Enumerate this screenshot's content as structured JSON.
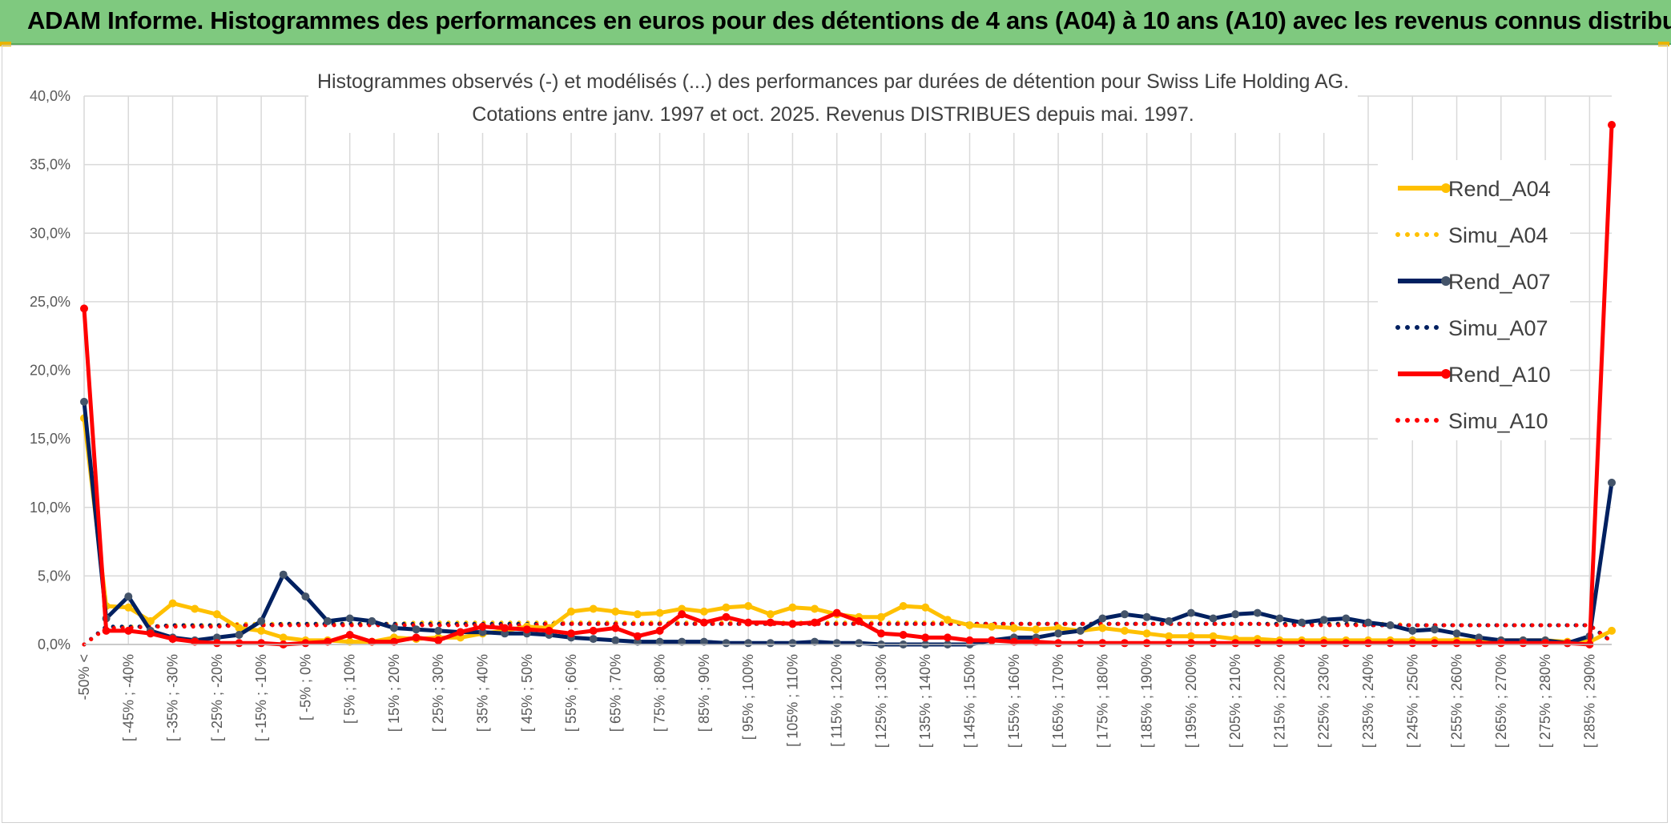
{
  "header": {
    "title": "ADAM Informe. Histogrammes des performances en euros pour des détentions de 4 ans (A04) à 10 ans (A10) avec les revenus connus distribués"
  },
  "chart_data": {
    "type": "line",
    "title": "Histogrammes observés (-) et modélisés (...) des performances par durées de détention pour Swiss Life Holding AG.",
    "subtitle": "Cotations entre janv. 1997 et oct. 2025. Revenus DISTRIBUES depuis mai. 1997.",
    "xlabel": "",
    "ylabel": "",
    "ylim": [
      0,
      40
    ],
    "y_ticks": [
      "0,0%",
      "5,0%",
      "10,0%",
      "15,0%",
      "20,0%",
      "25,0%",
      "30,0%",
      "35,0%",
      "40,0%"
    ],
    "grid": true,
    "legend_position": "right",
    "x_tick_labels": [
      "-50% <",
      "[ -45% ; -40%",
      "[ -35% ; -30%",
      "[ -25% ; -20%",
      "[ -15% ; -10%",
      "[ -5% ; 0%",
      "[ 5% ; 10%",
      "[ 15% ; 20%",
      "[ 25% ; 30%",
      "[ 35% ; 40%",
      "[ 45% ; 50%",
      "[ 55% ; 60%",
      "[ 65% ; 70%",
      "[ 75% ; 80%",
      "[ 85% ; 90%",
      "[ 95% ; 100%",
      "[ 105% ; 110%",
      "[ 115% ; 120%",
      "[ 125% ; 130%",
      "[ 135% ; 140%",
      "[ 145% ; 150%",
      "[ 155% ; 160%",
      "[ 165% ; 170%",
      "[ 175% ; 180%",
      "[ 185% ; 190%",
      "[ 195% ; 200%",
      "[ 205% ; 210%",
      "[ 215% ; 220%",
      "[ 225% ; 230%",
      "[ 235% ; 240%",
      "[ 245% ; 250%",
      "[ 255% ; 260%",
      "[ 265% ; 270%",
      "[ 275% ; 280%",
      "[ 285% ; 290%"
    ],
    "n_points": 70,
    "series": [
      {
        "name": "Rend_A04",
        "style": "solid",
        "color": "#ffc000",
        "values": [
          16.5,
          2.8,
          2.7,
          1.7,
          3.0,
          2.6,
          2.2,
          1.2,
          1.0,
          0.5,
          0.3,
          0.3,
          0.2,
          0.2,
          0.5,
          0.4,
          0.5,
          0.5,
          0.8,
          1.0,
          1.3,
          1.2,
          2.4,
          2.6,
          2.4,
          2.2,
          2.3,
          2.6,
          2.4,
          2.7,
          2.8,
          2.2,
          2.7,
          2.6,
          2.2,
          2.0,
          2.0,
          2.8,
          2.7,
          1.8,
          1.4,
          1.3,
          1.2,
          1.1,
          1.2,
          1.0,
          1.2,
          1.0,
          0.8,
          0.6,
          0.6,
          0.6,
          0.4,
          0.4,
          0.3,
          0.3,
          0.3,
          0.3,
          0.3,
          0.3,
          0.3,
          0.3,
          0.3,
          0.3,
          0.3,
          0.3,
          0.3,
          0.2,
          0.2,
          1.0
        ]
      },
      {
        "name": "Simu_A04",
        "style": "dotted",
        "color": "#ffc000",
        "values": [
          0.0,
          1.2,
          1.3,
          1.3,
          1.4,
          1.4,
          1.4,
          1.5,
          1.5,
          1.5,
          1.5,
          1.5,
          1.5,
          1.5,
          1.5,
          1.6,
          1.6,
          1.6,
          1.6,
          1.6,
          1.6,
          1.6,
          1.6,
          1.6,
          1.6,
          1.6,
          1.6,
          1.6,
          1.6,
          1.6,
          1.6,
          1.6,
          1.6,
          1.6,
          1.6,
          1.6,
          1.6,
          1.6,
          1.6,
          1.6,
          1.5,
          1.5,
          1.5,
          1.5,
          1.5,
          1.5,
          1.5,
          1.5,
          1.5,
          1.5,
          1.5,
          1.5,
          1.5,
          1.5,
          1.5,
          1.5,
          1.5,
          1.5,
          1.5,
          1.5,
          1.4,
          1.4,
          1.4,
          1.4,
          1.4,
          1.4,
          1.4,
          1.4,
          1.4,
          0.2
        ]
      },
      {
        "name": "Rend_A07",
        "style": "solid",
        "color": "#002060",
        "values": [
          17.7,
          1.9,
          3.5,
          1.0,
          0.5,
          0.3,
          0.5,
          0.7,
          1.7,
          5.1,
          3.5,
          1.7,
          1.9,
          1.7,
          1.2,
          1.1,
          1.0,
          0.9,
          0.9,
          0.8,
          0.8,
          0.7,
          0.5,
          0.4,
          0.3,
          0.2,
          0.2,
          0.2,
          0.2,
          0.1,
          0.1,
          0.1,
          0.1,
          0.2,
          0.1,
          0.1,
          0.0,
          0.0,
          0.0,
          0.0,
          0.0,
          0.3,
          0.5,
          0.5,
          0.8,
          1.0,
          1.9,
          2.2,
          2.0,
          1.7,
          2.3,
          1.9,
          2.2,
          2.3,
          1.9,
          1.6,
          1.8,
          1.9,
          1.6,
          1.4,
          1.0,
          1.1,
          0.8,
          0.5,
          0.3,
          0.3,
          0.3,
          0.1,
          0.6,
          11.8
        ]
      },
      {
        "name": "Simu_A07",
        "style": "dotted",
        "color": "#002060",
        "values": [
          0.0,
          1.3,
          1.3,
          1.3,
          1.4,
          1.4,
          1.4,
          1.4,
          1.4,
          1.5,
          1.5,
          1.5,
          1.5,
          1.5,
          1.5,
          1.5,
          1.5,
          1.5,
          1.5,
          1.5,
          1.5,
          1.5,
          1.5,
          1.5,
          1.5,
          1.5,
          1.5,
          1.5,
          1.5,
          1.5,
          1.5,
          1.5,
          1.5,
          1.5,
          1.5,
          1.5,
          1.5,
          1.5,
          1.5,
          1.5,
          1.5,
          1.5,
          1.5,
          1.5,
          1.5,
          1.5,
          1.5,
          1.5,
          1.5,
          1.5,
          1.5,
          1.5,
          1.5,
          1.5,
          1.5,
          1.5,
          1.5,
          1.5,
          1.4,
          1.4,
          1.4,
          1.4,
          1.4,
          1.4,
          1.4,
          1.4,
          1.4,
          1.4,
          1.4,
          0.2
        ]
      },
      {
        "name": "Rend_A10",
        "style": "solid",
        "color": "#ff0000",
        "values": [
          24.5,
          1.0,
          1.0,
          0.8,
          0.4,
          0.2,
          0.1,
          0.1,
          0.1,
          0.0,
          0.1,
          0.2,
          0.7,
          0.2,
          0.2,
          0.5,
          0.3,
          0.9,
          1.3,
          1.2,
          1.1,
          1.0,
          0.8,
          1.0,
          1.2,
          0.6,
          1.0,
          2.2,
          1.6,
          2.0,
          1.6,
          1.6,
          1.5,
          1.6,
          2.3,
          1.7,
          0.8,
          0.7,
          0.5,
          0.5,
          0.3,
          0.3,
          0.2,
          0.2,
          0.1,
          0.1,
          0.1,
          0.1,
          0.1,
          0.1,
          0.1,
          0.1,
          0.1,
          0.1,
          0.1,
          0.1,
          0.1,
          0.1,
          0.1,
          0.1,
          0.1,
          0.1,
          0.1,
          0.1,
          0.1,
          0.1,
          0.1,
          0.1,
          0.0,
          37.9
        ]
      },
      {
        "name": "Simu_A10",
        "style": "dotted",
        "color": "#ff0000",
        "values": [
          0.0,
          1.2,
          1.2,
          1.3,
          1.3,
          1.3,
          1.3,
          1.4,
          1.4,
          1.4,
          1.4,
          1.4,
          1.4,
          1.4,
          1.4,
          1.4,
          1.4,
          1.4,
          1.4,
          1.4,
          1.4,
          1.5,
          1.5,
          1.5,
          1.5,
          1.5,
          1.5,
          1.5,
          1.5,
          1.5,
          1.5,
          1.5,
          1.5,
          1.5,
          1.5,
          1.5,
          1.5,
          1.5,
          1.5,
          1.5,
          1.5,
          1.5,
          1.5,
          1.5,
          1.5,
          1.5,
          1.5,
          1.5,
          1.5,
          1.5,
          1.5,
          1.5,
          1.5,
          1.5,
          1.4,
          1.4,
          1.4,
          1.4,
          1.4,
          1.4,
          1.4,
          1.4,
          1.4,
          1.4,
          1.4,
          1.4,
          1.4,
          1.4,
          1.4,
          0.2
        ]
      }
    ]
  }
}
